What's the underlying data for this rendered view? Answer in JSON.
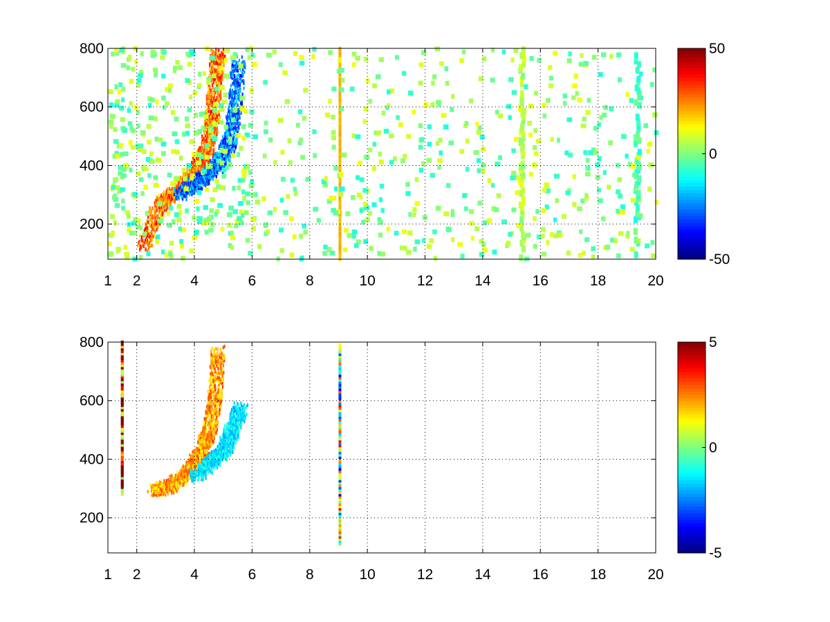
{
  "chart_data": [
    {
      "type": "heatmap",
      "title": "",
      "xlabel": "",
      "ylabel": "",
      "xlim": [
        1,
        20
      ],
      "ylim": [
        80,
        800
      ],
      "xticks": [
        1,
        2,
        4,
        6,
        8,
        10,
        12,
        14,
        16,
        18,
        20
      ],
      "yticks": [
        200,
        400,
        600,
        800
      ],
      "x_tick_labels": [
        "1",
        "2",
        "4",
        "6",
        "8",
        "10",
        "12",
        "14",
        "16",
        "18",
        "20"
      ],
      "y_tick_labels": [
        "200",
        "400",
        "600",
        "800"
      ],
      "grid": true,
      "colormap": "jet",
      "colorbar": {
        "range": [
          -50,
          50
        ],
        "tick_labels": [
          "50",
          "0",
          "-50"
        ]
      },
      "features": [
        {
          "kind": "curved band",
          "points": [
            [
              2.2,
              120
            ],
            [
              2.8,
              270
            ],
            [
              3.5,
              320
            ],
            [
              4.0,
              380
            ],
            [
              4.4,
              450
            ],
            [
              4.6,
              560
            ],
            [
              4.7,
              700
            ],
            [
              4.8,
              790
            ]
          ],
          "value": 35
        },
        {
          "kind": "curved band",
          "points": [
            [
              3.5,
              300
            ],
            [
              4.2,
              350
            ],
            [
              4.8,
              400
            ],
            [
              5.2,
              480
            ],
            [
              5.4,
              600
            ],
            [
              5.5,
              760
            ]
          ],
          "value": -35
        },
        {
          "kind": "vertical line",
          "x": 9.0,
          "y_range": [
            80,
            800
          ],
          "value": 20
        },
        {
          "kind": "vertical stripe",
          "x": 15.3,
          "y_range": [
            80,
            800
          ],
          "value": 5
        },
        {
          "kind": "vertical stripe",
          "x": 19.3,
          "y_range": [
            80,
            800
          ],
          "value": -5
        },
        {
          "kind": "scattered noise",
          "x_range": [
            1,
            20
          ],
          "y_range": [
            80,
            800
          ],
          "value_range": [
            -10,
            12
          ]
        }
      ]
    },
    {
      "type": "heatmap",
      "title": "",
      "xlabel": "",
      "ylabel": "",
      "xlim": [
        1,
        20
      ],
      "ylim": [
        80,
        800
      ],
      "xticks": [
        1,
        2,
        4,
        6,
        8,
        10,
        12,
        14,
        16,
        18,
        20
      ],
      "yticks": [
        200,
        400,
        600,
        800
      ],
      "x_tick_labels": [
        "1",
        "2",
        "4",
        "6",
        "8",
        "10",
        "12",
        "14",
        "16",
        "18",
        "20"
      ],
      "y_tick_labels": [
        "200",
        "400",
        "600",
        "800"
      ],
      "grid": true,
      "colormap": "jet",
      "colorbar": {
        "range": [
          -5,
          5
        ],
        "tick_labels": [
          "5",
          "0",
          "-5"
        ]
      },
      "features": [
        {
          "kind": "curved band",
          "points": [
            [
              2.6,
              290
            ],
            [
              3.2,
              310
            ],
            [
              3.8,
              360
            ],
            [
              4.2,
              420
            ],
            [
              4.5,
              500
            ],
            [
              4.7,
              620
            ],
            [
              4.8,
              780
            ]
          ],
          "value": 3
        },
        {
          "kind": "curved band",
          "points": [
            [
              4.0,
              340
            ],
            [
              4.6,
              390
            ],
            [
              5.0,
              430
            ],
            [
              5.3,
              500
            ],
            [
              5.6,
              580
            ]
          ],
          "value": -2
        },
        {
          "kind": "vertical line",
          "x": 9.0,
          "y_range": [
            110,
            790
          ],
          "value": 0
        },
        {
          "kind": "vertical line",
          "x": 1.45,
          "y_range": [
            280,
            800
          ],
          "value": 4
        }
      ]
    }
  ]
}
